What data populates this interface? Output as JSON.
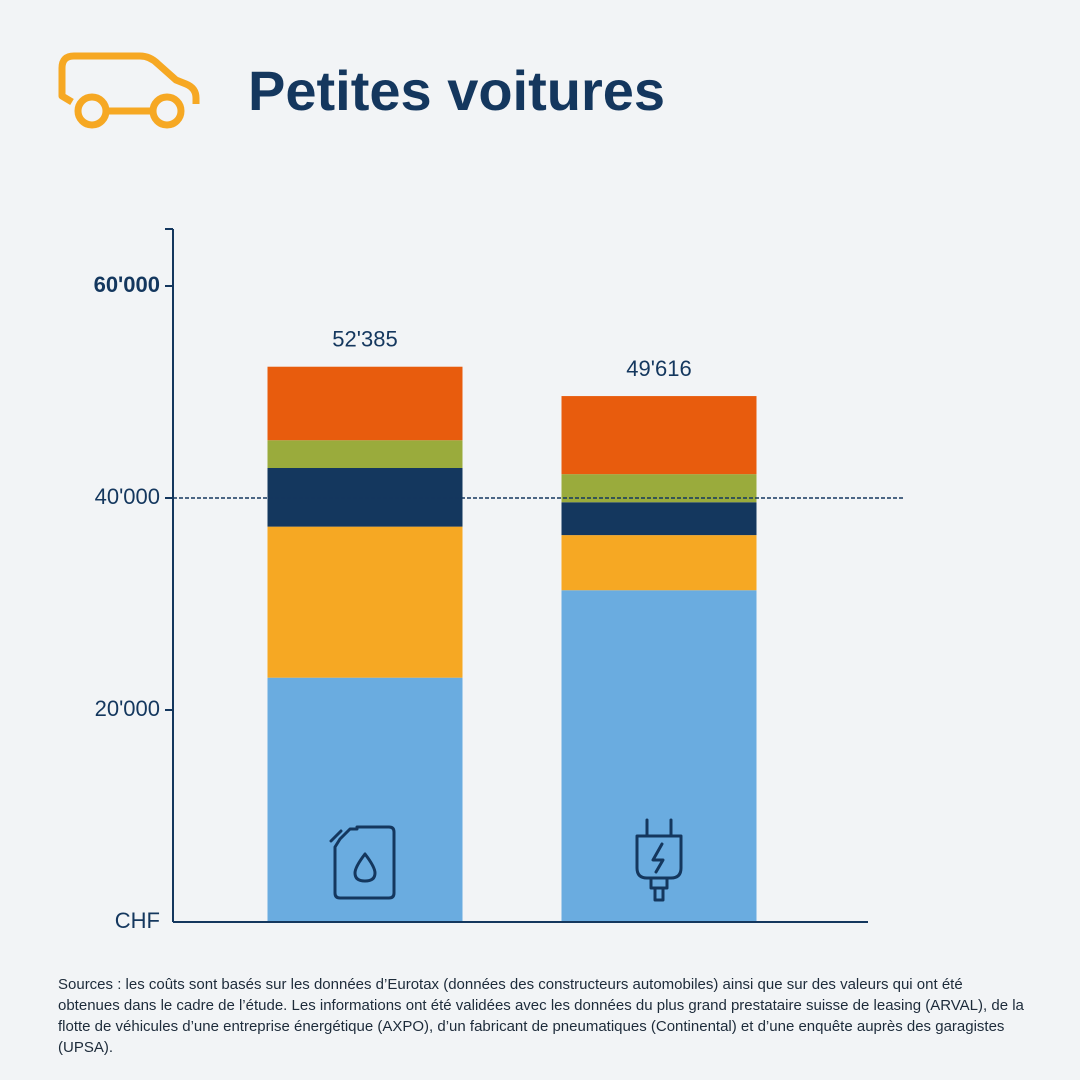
{
  "chart_data": {
    "type": "stacked_bar",
    "title": "Petites voitures",
    "categories": [
      null,
      null
    ],
    "series": [
      {
        "color": "#6aace0",
        "values": [
          23050,
          31300
        ]
      },
      {
        "color": "#f6a823",
        "values": [
          14250,
          5200
        ]
      },
      {
        "color": "#14375e",
        "values": [
          5530,
          3100
        ]
      },
      {
        "color": "#9aab3c",
        "values": [
          2620,
          2650
        ]
      },
      {
        "color": "#e85c0d",
        "values": [
          6935,
          7366
        ]
      }
    ],
    "totals": {
      "values": [
        52385,
        49616
      ],
      "value_labels": [
        "52'385",
        "49'616"
      ]
    },
    "y_axis_label": "CHF",
    "ylim": [
      0,
      65000
    ],
    "yticks": [
      {
        "value": 20000,
        "label": "20'000"
      },
      {
        "value": 40000,
        "label": "40'000"
      },
      {
        "value": 60000,
        "label": "60'000"
      }
    ],
    "reference_line": 40000,
    "footnote": "Sources : les coûts sont basés sur les données d’Eurotax (données des constructeurs automobiles) ainsi que sur des valeurs qui ont été obtenues dans le cadre de l’étude. Les informations ont été validées avec les données du plus grand prestataire suisse de leasing (ARVAL), de la flotte de véhicules d’une entreprise énergétique (AXPO), d’un fabricant de pneumatiques (Continental) et d’une enquête auprès des garagistes (UPSA)."
  }
}
